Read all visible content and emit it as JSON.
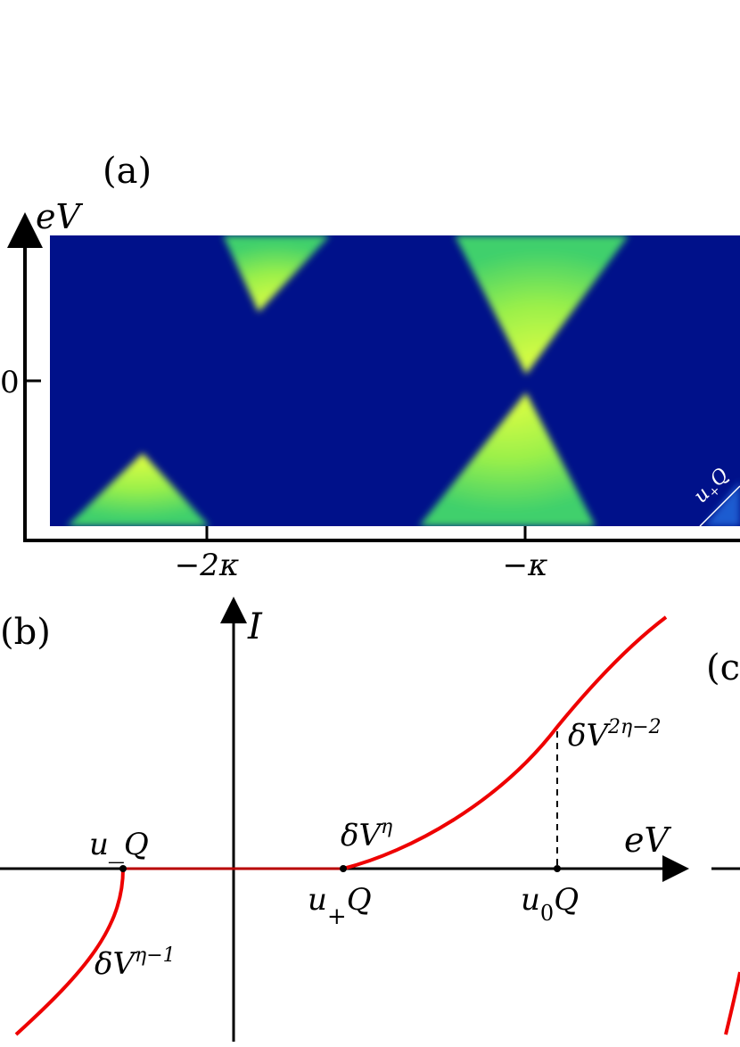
{
  "panel_a": {
    "label": "(a)",
    "y_axis_label": "eV",
    "y_tick": "0",
    "x_ticks": [
      "−2κ",
      "−κ"
    ],
    "annotation": "u+Q",
    "colors": {
      "background": "#00118a",
      "bright": "#e7ff40",
      "mid": "#49e36a",
      "axis": "#000000",
      "line": "#ffffff"
    }
  },
  "panel_b": {
    "label": "(b)",
    "y_axis_label": "I",
    "x_axis_label": "eV",
    "points": [
      {
        "name": "u_Q",
        "label": "u_Q"
      },
      {
        "name": "u_plus_Q",
        "label": "u+Q"
      },
      {
        "name": "u_zero_Q",
        "label": "u0Q"
      }
    ],
    "annotations": [
      {
        "name": "delta-v-eta",
        "base": "δV",
        "exponent": "η"
      },
      {
        "name": "delta-v-2eta-minus-2",
        "base": "δV",
        "exponent": "2η−2"
      },
      {
        "name": "delta-v-eta-minus-1",
        "base": "δV",
        "exponent": "η−1"
      }
    ],
    "colors": {
      "curve": "#ee0000",
      "axis": "#000000"
    }
  },
  "panel_c": {
    "label_partial": "(c"
  }
}
